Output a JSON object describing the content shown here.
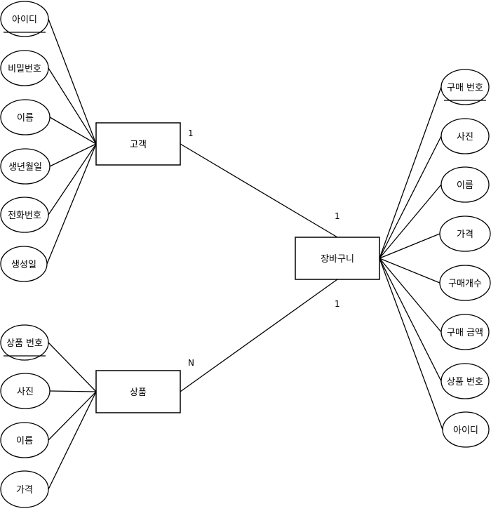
{
  "entities": [
    {
      "id": "customer",
      "label": "고객"
    },
    {
      "id": "product",
      "label": "상품"
    },
    {
      "id": "cart",
      "label": "장바구니"
    }
  ],
  "attributes": {
    "customer": [
      {
        "label": "아이디",
        "key": true
      },
      {
        "label": "비밀번호",
        "key": false
      },
      {
        "label": "이름",
        "key": false
      },
      {
        "label": "생년월일",
        "key": false
      },
      {
        "label": "전화번호",
        "key": false
      },
      {
        "label": "생성일",
        "key": false
      }
    ],
    "product": [
      {
        "label": "상품 번호",
        "key": true
      },
      {
        "label": "사진",
        "key": false
      },
      {
        "label": "이름",
        "key": false
      },
      {
        "label": "가격",
        "key": false
      }
    ],
    "cart": [
      {
        "label": "구매 번호",
        "key": true
      },
      {
        "label": "사진",
        "key": false
      },
      {
        "label": "이름",
        "key": false
      },
      {
        "label": "가격",
        "key": false
      },
      {
        "label": "구매개수",
        "key": false
      },
      {
        "label": "구매 금액",
        "key": false
      },
      {
        "label": "상품 번호",
        "key": false
      },
      {
        "label": "아이디",
        "key": false
      }
    ]
  },
  "relationships": [
    {
      "from": "customer",
      "to": "cart",
      "from_card": "1",
      "to_card": "1"
    },
    {
      "from": "product",
      "to": "cart",
      "from_card": "N",
      "to_card": "1"
    }
  ]
}
